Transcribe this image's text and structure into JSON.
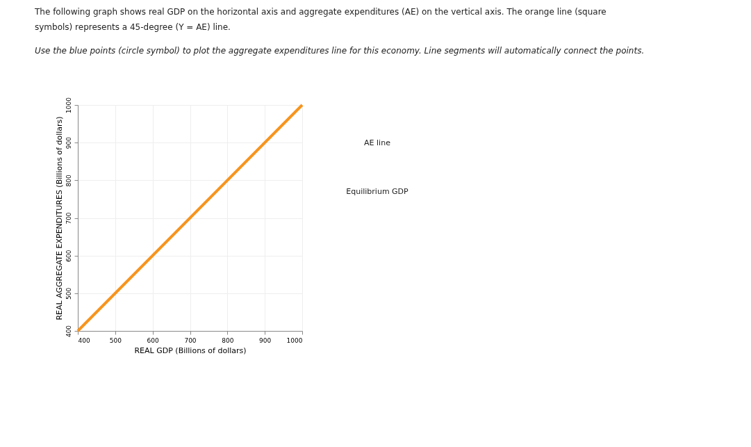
{
  "chart_data": {
    "type": "line",
    "title": [
      "The following graph shows real GDP on the horizontal axis and aggregate expenditures (AE) on the vertical axis. The orange line (square",
      "symbols) represents a 45-degree (Y = AE) line."
    ],
    "subtitle": "Use the blue points (circle symbol) to plot the aggregate expenditures line for this economy. Line segments will automatically connect the points.",
    "xlabel": "REAL GDP (Billions of dollars)",
    "ylabel": "REAL AGGREGATE EXPENDITURES (Billions of dollars)",
    "x": [
      400,
      1000
    ],
    "series": [
      {
        "color": "#f7941d",
        "values": [
          400,
          1000
        ]
      }
    ],
    "xlim": [
      400,
      1000
    ],
    "ylim": [
      400,
      1000
    ],
    "xticks": [
      400,
      500,
      600,
      700,
      800,
      900,
      1000
    ],
    "yticks": [
      400,
      500,
      600,
      700,
      800,
      900,
      1000
    ],
    "grid": true,
    "marker": "none",
    "line_style": "solid",
    "annotations": [
      "AE line",
      "Equilibrium GDP"
    ]
  }
}
